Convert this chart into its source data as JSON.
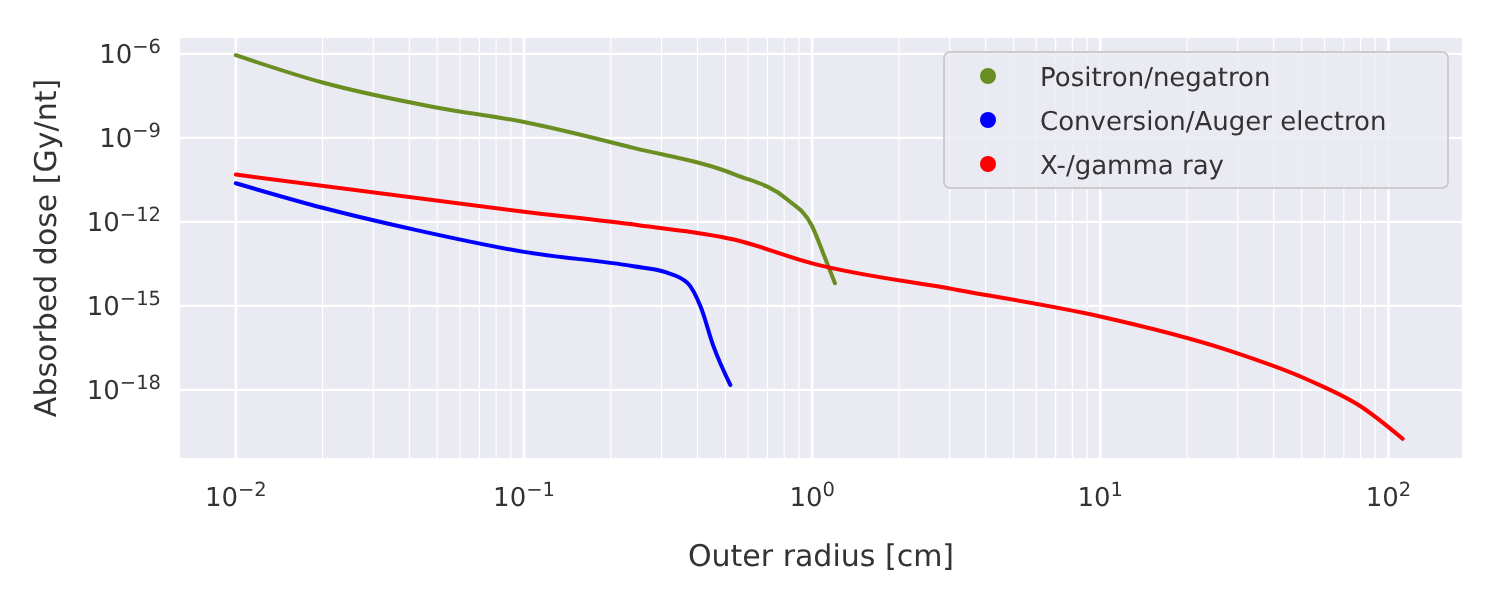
{
  "chart_data": {
    "type": "line",
    "xlabel": "Outer radius [cm]",
    "ylabel": "Absorbed dose [Gy/nt]",
    "log": "xy",
    "grid": true,
    "legend": "top right",
    "marker": "none",
    "line_style": "solid",
    "xlim": [
      0.0064,
      180
    ],
    "ylim": [
      3.7e-21,
      3.7e-06
    ],
    "xticks": [
      {
        "value": 0.01,
        "label": "10$^{−2}$"
      },
      {
        "value": 0.02,
        "label": null
      },
      {
        "value": 0.03,
        "label": null
      },
      {
        "value": 0.04,
        "label": null
      },
      {
        "value": 0.05,
        "label": null
      },
      {
        "value": 0.06,
        "label": null
      },
      {
        "value": 0.07,
        "label": null
      },
      {
        "value": 0.08,
        "label": null
      },
      {
        "value": 0.09,
        "label": null
      },
      {
        "value": 0.1,
        "label": "10$^{−1}$"
      },
      {
        "value": 0.2,
        "label": null
      },
      {
        "value": 0.3,
        "label": null
      },
      {
        "value": 0.4,
        "label": null
      },
      {
        "value": 0.5,
        "label": null
      },
      {
        "value": 0.6,
        "label": null
      },
      {
        "value": 0.7,
        "label": null
      },
      {
        "value": 0.8,
        "label": null
      },
      {
        "value": 0.9,
        "label": null
      },
      {
        "value": 1,
        "label": "10$^{0}$"
      },
      {
        "value": 2,
        "label": null
      },
      {
        "value": 3,
        "label": null
      },
      {
        "value": 4,
        "label": null
      },
      {
        "value": 5,
        "label": null
      },
      {
        "value": 6,
        "label": null
      },
      {
        "value": 7,
        "label": null
      },
      {
        "value": 8,
        "label": null
      },
      {
        "value": 9,
        "label": null
      },
      {
        "value": 10,
        "label": "10$^{1}$"
      },
      {
        "value": 20,
        "label": null
      },
      {
        "value": 30,
        "label": null
      },
      {
        "value": 40,
        "label": null
      },
      {
        "value": 50,
        "label": null
      },
      {
        "value": 60,
        "label": null
      },
      {
        "value": 70,
        "label": null
      },
      {
        "value": 80,
        "label": null
      },
      {
        "value": 90,
        "label": null
      },
      {
        "value": 100,
        "label": "10$^{2}$"
      }
    ],
    "yticks": [
      {
        "value": 1e-18,
        "label": "10$^{−18}$"
      },
      {
        "value": 1e-15,
        "label": "10$^{−15}$"
      },
      {
        "value": 1e-12,
        "label": "10$^{−12}$"
      },
      {
        "value": 1e-09,
        "label": "10$^{−9}$"
      },
      {
        "value": 1e-06,
        "label": "10$^{−6}$"
      }
    ],
    "series": [
      {
        "name": "Positron/negatron",
        "color": "#6b8e23",
        "x": [
          0.01,
          0.02,
          0.048,
          0.1,
          0.24,
          0.54,
          0.82,
          1.0,
          1.09,
          1.2
        ],
        "values": [
          9e-07,
          9.5e-08,
          1.3e-08,
          3.7e-09,
          4.4e-10,
          4.9e-11,
          6.3e-12,
          7e-13,
          8e-14,
          6.5e-15
        ]
      },
      {
        "name": "Conversion/Auger electron",
        "color": "#0000ff",
        "x": [
          0.01,
          0.02,
          0.042,
          0.1,
          0.24,
          0.31,
          0.37,
          0.41,
          0.455,
          0.52
        ],
        "values": [
          2.4e-11,
          3.2e-12,
          5.2e-13,
          8.5e-14,
          2.6e-14,
          1.6e-14,
          6.5e-15,
          9.5e-16,
          3.5e-17,
          1.5e-18
        ]
      },
      {
        "name": "X-/gamma ray",
        "color": "#ff0000",
        "x": [
          0.01,
          0.1,
          0.25,
          0.54,
          1.0,
          3.2,
          10,
          27.5,
          52.5,
          80,
          112
        ],
        "values": [
          4.9e-11,
          2.3e-12,
          7.6e-13,
          2.3e-13,
          3.3e-14,
          3.7e-15,
          4.2e-16,
          2.7e-17,
          2.3e-18,
          2.6e-19,
          1.8e-20
        ]
      }
    ]
  }
}
